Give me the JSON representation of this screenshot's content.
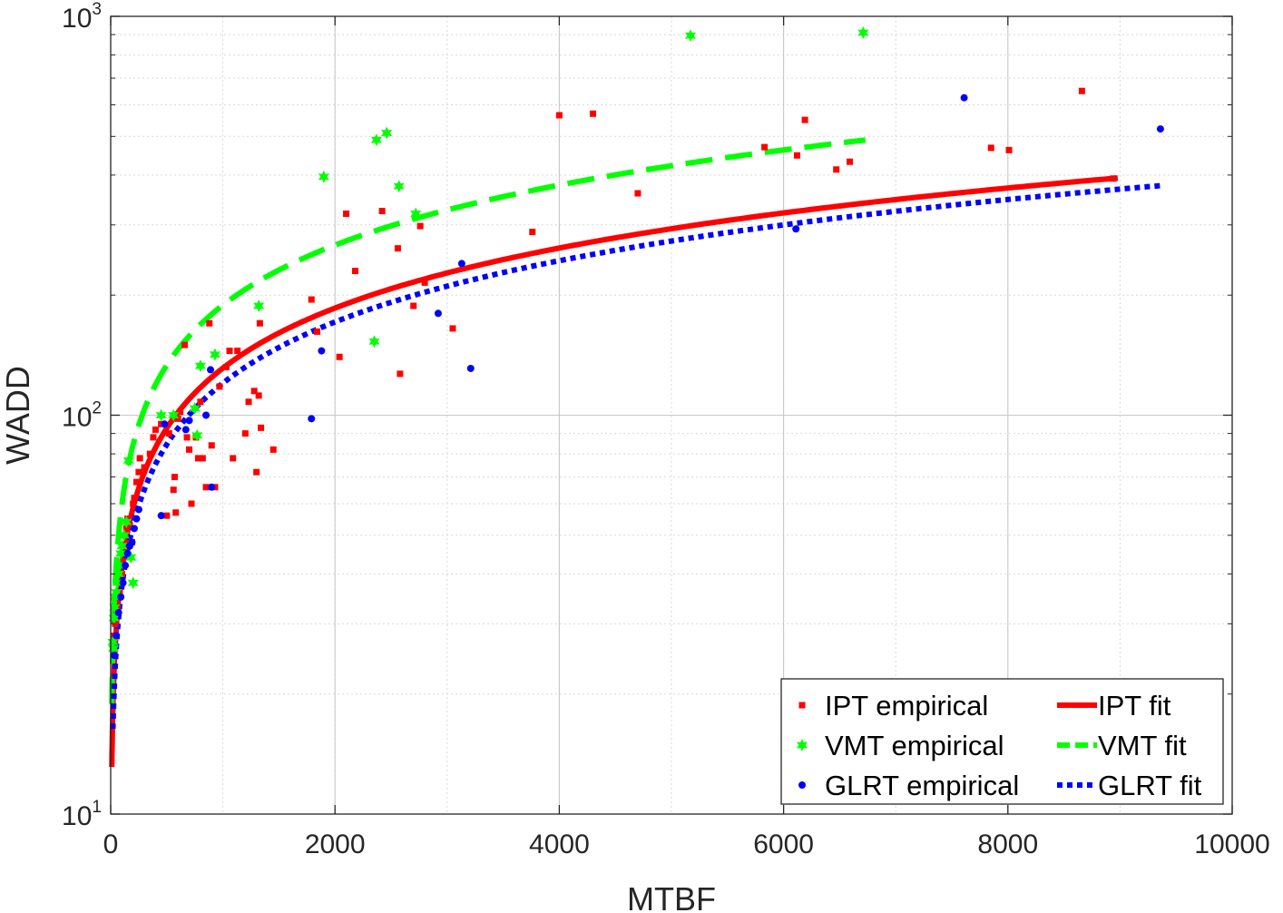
{
  "chart_data": {
    "type": "scatter",
    "xlabel": "MTBF",
    "ylabel": "WADD",
    "xlim": [
      0,
      10000
    ],
    "ylim": [
      10,
      1000
    ],
    "yscale": "log",
    "grid": true,
    "minor_grid": true,
    "x_ticks": [
      0,
      2000,
      4000,
      6000,
      8000,
      10000
    ],
    "x_tick_labels": [
      "0",
      "2000",
      "4000",
      "6000",
      "8000",
      "10000"
    ],
    "y_ticks": [
      10,
      100,
      1000
    ],
    "y_tick_labels": [
      {
        "base": "10",
        "exp": "1"
      },
      {
        "base": "10",
        "exp": "2"
      },
      {
        "base": "10",
        "exp": "3"
      }
    ],
    "legend_position": "bottom-right",
    "legend_columns": 2,
    "series": [
      {
        "name": "IPT empirical",
        "kind": "points",
        "marker": "square",
        "color": "#ff0000",
        "points": [
          [
            20,
            26
          ],
          [
            30,
            28
          ],
          [
            40,
            30
          ],
          [
            50,
            32
          ],
          [
            60,
            33
          ],
          [
            70,
            35
          ],
          [
            80,
            36
          ],
          [
            90,
            38
          ],
          [
            100,
            40
          ],
          [
            110,
            43
          ],
          [
            120,
            46
          ],
          [
            130,
            50
          ],
          [
            140,
            52
          ],
          [
            150,
            55
          ],
          [
            170,
            53
          ],
          [
            190,
            48
          ],
          [
            200,
            60
          ],
          [
            210,
            62
          ],
          [
            230,
            68
          ],
          [
            250,
            72
          ],
          [
            260,
            78
          ],
          [
            300,
            74
          ],
          [
            350,
            80
          ],
          [
            380,
            88
          ],
          [
            400,
            92
          ],
          [
            450,
            95
          ],
          [
            500,
            56
          ],
          [
            520,
            90
          ],
          [
            560,
            65
          ],
          [
            570,
            70
          ],
          [
            580,
            57
          ],
          [
            600,
            98
          ],
          [
            620,
            102
          ],
          [
            660,
            150
          ],
          [
            680,
            88
          ],
          [
            700,
            82
          ],
          [
            720,
            60
          ],
          [
            760,
            88
          ],
          [
            780,
            78
          ],
          [
            800,
            108
          ],
          [
            820,
            78
          ],
          [
            850,
            66
          ],
          [
            880,
            170
          ],
          [
            900,
            84
          ],
          [
            930,
            66
          ],
          [
            970,
            118
          ],
          [
            1030,
            132
          ],
          [
            1060,
            145
          ],
          [
            1090,
            78
          ],
          [
            1130,
            145
          ],
          [
            1200,
            90
          ],
          [
            1230,
            108
          ],
          [
            1280,
            115
          ],
          [
            1300,
            72
          ],
          [
            1320,
            112
          ],
          [
            1330,
            170
          ],
          [
            1340,
            93
          ],
          [
            1450,
            82
          ],
          [
            1790,
            195
          ],
          [
            1840,
            162
          ],
          [
            2040,
            140
          ],
          [
            2100,
            320
          ],
          [
            2180,
            230
          ],
          [
            2420,
            325
          ],
          [
            2560,
            262
          ],
          [
            2580,
            127
          ],
          [
            2700,
            188
          ],
          [
            2760,
            298
          ],
          [
            2800,
            215
          ],
          [
            3050,
            165
          ],
          [
            3760,
            288
          ],
          [
            4000,
            565
          ],
          [
            4300,
            570
          ],
          [
            4700,
            360
          ],
          [
            5830,
            470
          ],
          [
            6120,
            448
          ],
          [
            6190,
            550
          ],
          [
            6470,
            413
          ],
          [
            6590,
            432
          ],
          [
            7850,
            468
          ],
          [
            8010,
            462
          ],
          [
            8660,
            650
          ],
          [
            8940,
            392
          ]
        ]
      },
      {
        "name": "VMT empirical",
        "kind": "points",
        "marker": "star",
        "color": "#00ff00",
        "points": [
          [
            20,
            27
          ],
          [
            25,
            26
          ],
          [
            30,
            31
          ],
          [
            35,
            33
          ],
          [
            40,
            35
          ],
          [
            50,
            36
          ],
          [
            60,
            38
          ],
          [
            70,
            40
          ],
          [
            80,
            42
          ],
          [
            90,
            45
          ],
          [
            100,
            47
          ],
          [
            120,
            50
          ],
          [
            140,
            54
          ],
          [
            160,
            77
          ],
          [
            180,
            44
          ],
          [
            200,
            38
          ],
          [
            450,
            100
          ],
          [
            560,
            100
          ],
          [
            750,
            104
          ],
          [
            770,
            89
          ],
          [
            800,
            133
          ],
          [
            930,
            142
          ],
          [
            1320,
            188
          ],
          [
            1900,
            396
          ],
          [
            2350,
            153
          ],
          [
            2370,
            490
          ],
          [
            2460,
            510
          ],
          [
            2570,
            375
          ],
          [
            2720,
            320
          ],
          [
            5170,
            895
          ],
          [
            6710,
            910
          ]
        ]
      },
      {
        "name": "GLRT empirical",
        "kind": "points",
        "marker": "dot",
        "color": "#0000ff",
        "points": [
          [
            30,
            25
          ],
          [
            50,
            28
          ],
          [
            70,
            32
          ],
          [
            90,
            35
          ],
          [
            110,
            38
          ],
          [
            130,
            42
          ],
          [
            150,
            45
          ],
          [
            170,
            47
          ],
          [
            190,
            48
          ],
          [
            210,
            52
          ],
          [
            230,
            55
          ],
          [
            250,
            58
          ],
          [
            450,
            56
          ],
          [
            480,
            95
          ],
          [
            670,
            92
          ],
          [
            700,
            97
          ],
          [
            850,
            100
          ],
          [
            890,
            130
          ],
          [
            900,
            66
          ],
          [
            1790,
            98
          ],
          [
            1880,
            145
          ],
          [
            2920,
            180
          ],
          [
            3130,
            240
          ],
          [
            3210,
            131
          ],
          [
            6110,
            293
          ],
          [
            7610,
            625
          ],
          [
            9360,
            522
          ]
        ]
      },
      {
        "name": "IPT fit",
        "kind": "fit",
        "style": "solid",
        "color": "#ff0000",
        "a": 4.15,
        "b": 0.5,
        "x_range": [
          10,
          8980
        ]
      },
      {
        "name": "VMT fit",
        "kind": "fit",
        "style": "dashed",
        "color": "#00ff00",
        "a": 5.97,
        "b": 0.5,
        "x_range": [
          10,
          6730
        ]
      },
      {
        "name": "GLRT fit",
        "kind": "fit",
        "style": "dotted",
        "color": "#0000ff",
        "a": 3.55,
        "b": 0.51,
        "x_range": [
          20,
          9380
        ]
      }
    ]
  }
}
